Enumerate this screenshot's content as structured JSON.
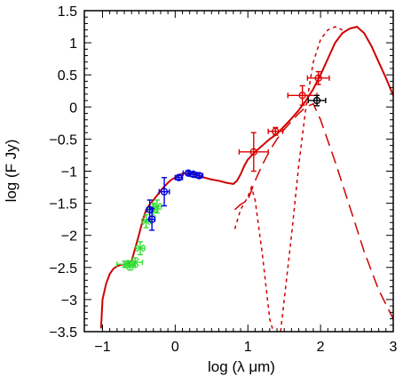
{
  "chart_data": {
    "type": "scatter",
    "xlabel": "log    (λ μm)",
    "ylabel": "log (F Jy)",
    "xlim": [
      -1.25,
      3.0
    ],
    "ylim": [
      -3.5,
      1.5
    ],
    "x_ticks": [
      -1,
      0,
      1,
      2,
      3
    ],
    "x_tick_labels": [
      "−1",
      "0",
      "1",
      "2",
      "3"
    ],
    "y_ticks": [
      -3.5,
      -3,
      -2.5,
      -2,
      -1.5,
      -1,
      -0.5,
      0,
      0.5,
      1,
      1.5
    ],
    "y_tick_labels": [
      "−3.5",
      "−3",
      "−2.5",
      "−2",
      "−1.5",
      "−1",
      "−0.5",
      "0",
      "0.5",
      "1",
      "1.5"
    ],
    "grid": false,
    "colors": {
      "model": "#d00000",
      "green": "#33dd33",
      "blue": "#0000dd",
      "red": "#dd0000",
      "black": "#000000"
    },
    "series": [
      {
        "style": "solid",
        "color": "#d00000",
        "x": [
          -1.02,
          -1.0,
          -0.95,
          -0.9,
          -0.85,
          -0.8,
          -0.75,
          -0.7,
          -0.65,
          -0.6,
          -0.55,
          -0.5,
          -0.45,
          -0.4,
          -0.35,
          -0.3,
          -0.25,
          -0.2,
          -0.15,
          -0.1,
          -0.05,
          0.0,
          0.05,
          0.1,
          0.15,
          0.2,
          0.25,
          0.3,
          0.35,
          0.4,
          0.5,
          0.6,
          0.7,
          0.8,
          0.85,
          0.9,
          0.95,
          1.0,
          1.1,
          1.2,
          1.3,
          1.4,
          1.5,
          1.6,
          1.7,
          1.8,
          1.9,
          2.0,
          2.1,
          2.2,
          2.3,
          2.4,
          2.5,
          2.6,
          2.7,
          2.8,
          2.9,
          3.0
        ],
        "y": [
          -3.45,
          -3.0,
          -2.75,
          -2.6,
          -2.52,
          -2.48,
          -2.46,
          -2.45,
          -2.44,
          -2.4,
          -2.2,
          -2.0,
          -1.78,
          -1.6,
          -1.52,
          -1.45,
          -1.38,
          -1.3,
          -1.24,
          -1.18,
          -1.13,
          -1.1,
          -1.06,
          -1.04,
          -1.03,
          -1.03,
          -1.04,
          -1.06,
          -1.08,
          -1.1,
          -1.13,
          -1.15,
          -1.18,
          -1.2,
          -1.15,
          -1.05,
          -0.92,
          -0.82,
          -0.7,
          -0.6,
          -0.5,
          -0.42,
          -0.3,
          -0.18,
          -0.05,
          0.1,
          0.28,
          0.5,
          0.75,
          1.0,
          1.15,
          1.22,
          1.25,
          1.15,
          0.95,
          0.7,
          0.45,
          0.18
        ]
      },
      {
        "style": "dashed-long",
        "color": "#d00000",
        "x": [
          0.82,
          0.9,
          1.0,
          1.1,
          1.2,
          1.3,
          1.4,
          1.5,
          1.6,
          1.7,
          1.8,
          1.9,
          2.0,
          2.2,
          2.4,
          2.6,
          2.8,
          3.0
        ],
        "y": [
          -1.6,
          -1.52,
          -1.45,
          -1.15,
          -0.9,
          -0.68,
          -0.5,
          -0.35,
          -0.22,
          -0.1,
          0.0,
          0.05,
          -0.2,
          -0.85,
          -1.55,
          -2.25,
          -2.85,
          -3.3
        ]
      },
      {
        "style": "dashed-short",
        "color": "#d00000",
        "x": [
          0.82,
          0.9,
          1.0,
          1.05,
          1.1,
          1.2,
          1.3,
          1.35
        ],
        "y": [
          -1.9,
          -1.6,
          -1.4,
          -1.25,
          -1.45,
          -2.3,
          -3.3,
          -3.5
        ]
      },
      {
        "style": "dashed-short",
        "color": "#d00000",
        "x": [
          1.45,
          1.5,
          1.6,
          1.7,
          1.8,
          1.9,
          2.0,
          2.1,
          2.2,
          2.3
        ],
        "y": [
          -3.5,
          -3.0,
          -2.0,
          -0.9,
          0.0,
          0.7,
          1.05,
          1.2,
          1.25,
          1.2
        ]
      }
    ],
    "points": [
      {
        "color": "#33dd33",
        "marker": "star",
        "x": -0.68,
        "y": -2.45,
        "xerr": 0.12,
        "yerr": 0.05
      },
      {
        "color": "#33dd33",
        "marker": "star",
        "x": -0.62,
        "y": -2.47,
        "xerr": 0.07,
        "yerr": 0.07
      },
      {
        "color": "#33dd33",
        "marker": "star",
        "x": -0.55,
        "y": -2.42,
        "xerr": 0.1,
        "yerr": 0.07
      },
      {
        "color": "#33dd33",
        "marker": "star",
        "x": -0.48,
        "y": -2.2,
        "xerr": 0.06,
        "yerr": 0.1
      },
      {
        "color": "#33dd33",
        "marker": "star",
        "x": -0.4,
        "y": -1.78,
        "xerr": 0.06,
        "yerr": 0.1
      },
      {
        "color": "#33dd33",
        "marker": "star",
        "x": -0.3,
        "y": -1.6,
        "xerr": 0.06,
        "yerr": 0.1
      },
      {
        "color": "#33dd33",
        "marker": "star",
        "x": -0.25,
        "y": -1.55,
        "xerr": 0.06,
        "yerr": 0.1
      },
      {
        "color": "#0000dd",
        "marker": "circle",
        "x": -0.35,
        "y": -1.6,
        "xerr": 0.04,
        "yerr": 0.15
      },
      {
        "color": "#0000dd",
        "marker": "circle",
        "x": -0.32,
        "y": -1.75,
        "xerr": 0.04,
        "yerr": 0.17
      },
      {
        "color": "#0000dd",
        "marker": "circle",
        "x": -0.15,
        "y": -1.32,
        "xerr": 0.07,
        "yerr": 0.22
      },
      {
        "color": "#0000dd",
        "marker": "circle",
        "x": 0.05,
        "y": -1.1,
        "xerr": 0.05,
        "yerr": 0.03
      },
      {
        "color": "#0000dd",
        "marker": "circle",
        "x": 0.18,
        "y": -1.03,
        "xerr": 0.07,
        "yerr": 0.03
      },
      {
        "color": "#0000dd",
        "marker": "circle",
        "x": 0.25,
        "y": -1.05,
        "xerr": 0.05,
        "yerr": 0.03
      },
      {
        "color": "#0000dd",
        "marker": "circle",
        "x": 0.33,
        "y": -1.07,
        "xerr": 0.05,
        "yerr": 0.03
      },
      {
        "color": "#dd0000",
        "marker": "circle",
        "x": 1.08,
        "y": -0.7,
        "xerr": 0.2,
        "yerr": 0.3
      },
      {
        "color": "#dd0000",
        "marker": "circle",
        "x": 1.38,
        "y": -0.38,
        "xerr": 0.1,
        "yerr": 0.06
      },
      {
        "color": "#dd0000",
        "marker": "circle",
        "x": 1.75,
        "y": 0.18,
        "xerr": 0.2,
        "yerr": 0.15
      },
      {
        "color": "#dd0000",
        "marker": "circle",
        "x": 1.97,
        "y": 0.45,
        "xerr": 0.15,
        "yerr": 0.1
      },
      {
        "color": "#000000",
        "marker": "circle",
        "x": 1.95,
        "y": 0.1,
        "xerr": 0.12,
        "yerr": 0.08
      }
    ]
  }
}
